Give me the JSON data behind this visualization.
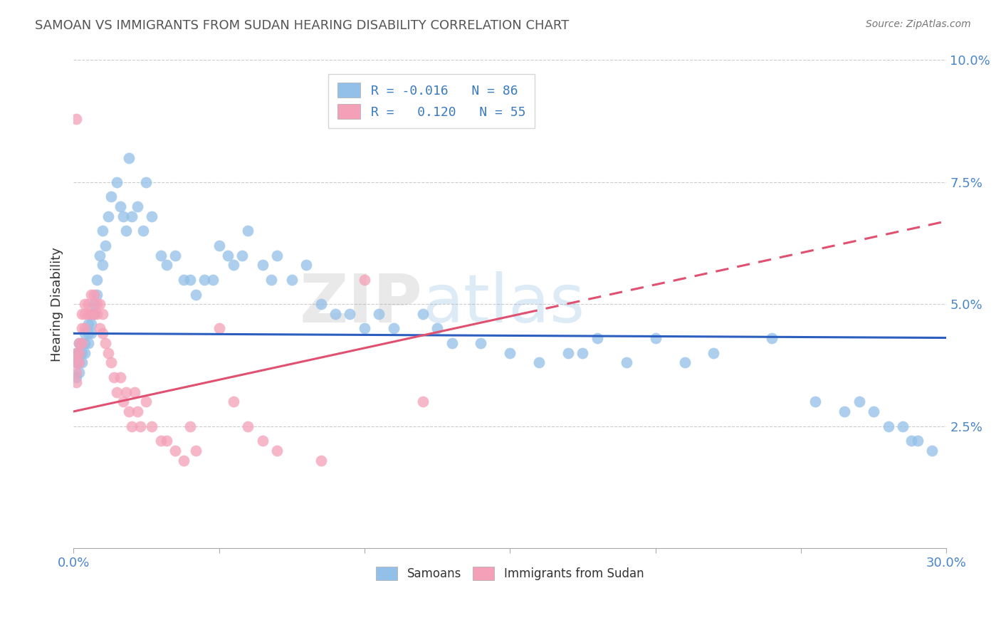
{
  "title": "SAMOAN VS IMMIGRANTS FROM SUDAN HEARING DISABILITY CORRELATION CHART",
  "source": "Source: ZipAtlas.com",
  "ylabel": "Hearing Disability",
  "xlim": [
    0,
    0.3
  ],
  "ylim": [
    0,
    0.1
  ],
  "xtick_positions": [
    0.0,
    0.05,
    0.1,
    0.15,
    0.2,
    0.25,
    0.3
  ],
  "xtick_labels_sparse": {
    "0.0": "0.0%",
    "0.30": "30.0%"
  },
  "ytick_positions": [
    0.0,
    0.025,
    0.05,
    0.075,
    0.1
  ],
  "ytick_labels": [
    "",
    "2.5%",
    "5.0%",
    "7.5%",
    "10.0%"
  ],
  "blue_color": "#92C0E8",
  "pink_color": "#F4A0B8",
  "trend_blue": "#2B5EBF",
  "trend_pink": "#E05070",
  "blue_R": -0.016,
  "blue_N": 86,
  "pink_R": 0.12,
  "pink_N": 55,
  "samoans_label": "Samoans",
  "immigrants_label": "Immigrants from Sudan",
  "watermark_zip": "ZIP",
  "watermark_atlas": "atlas",
  "blue_x": [
    0.001,
    0.001,
    0.001,
    0.002,
    0.002,
    0.002,
    0.002,
    0.003,
    0.003,
    0.003,
    0.004,
    0.004,
    0.004,
    0.005,
    0.005,
    0.005,
    0.006,
    0.006,
    0.006,
    0.007,
    0.007,
    0.008,
    0.008,
    0.009,
    0.01,
    0.01,
    0.011,
    0.012,
    0.013,
    0.015,
    0.016,
    0.017,
    0.018,
    0.019,
    0.02,
    0.022,
    0.024,
    0.025,
    0.027,
    0.03,
    0.032,
    0.035,
    0.038,
    0.04,
    0.042,
    0.045,
    0.048,
    0.05,
    0.053,
    0.055,
    0.058,
    0.06,
    0.065,
    0.068,
    0.07,
    0.075,
    0.08,
    0.085,
    0.09,
    0.095,
    0.1,
    0.105,
    0.11,
    0.12,
    0.125,
    0.13,
    0.14,
    0.15,
    0.16,
    0.17,
    0.175,
    0.18,
    0.19,
    0.2,
    0.21,
    0.22,
    0.24,
    0.255,
    0.265,
    0.27,
    0.275,
    0.28,
    0.285,
    0.288,
    0.29,
    0.295
  ],
  "blue_y": [
    0.04,
    0.038,
    0.035,
    0.042,
    0.04,
    0.038,
    0.036,
    0.042,
    0.04,
    0.038,
    0.044,
    0.042,
    0.04,
    0.046,
    0.044,
    0.042,
    0.048,
    0.046,
    0.044,
    0.05,
    0.048,
    0.055,
    0.052,
    0.06,
    0.065,
    0.058,
    0.062,
    0.068,
    0.072,
    0.075,
    0.07,
    0.068,
    0.065,
    0.08,
    0.068,
    0.07,
    0.065,
    0.075,
    0.068,
    0.06,
    0.058,
    0.06,
    0.055,
    0.055,
    0.052,
    0.055,
    0.055,
    0.062,
    0.06,
    0.058,
    0.06,
    0.065,
    0.058,
    0.055,
    0.06,
    0.055,
    0.058,
    0.05,
    0.048,
    0.048,
    0.045,
    0.048,
    0.045,
    0.048,
    0.045,
    0.042,
    0.042,
    0.04,
    0.038,
    0.04,
    0.04,
    0.043,
    0.038,
    0.043,
    0.038,
    0.04,
    0.043,
    0.03,
    0.028,
    0.03,
    0.028,
    0.025,
    0.025,
    0.022,
    0.022,
    0.02
  ],
  "pink_x": [
    0.001,
    0.001,
    0.001,
    0.001,
    0.002,
    0.002,
    0.002,
    0.003,
    0.003,
    0.003,
    0.004,
    0.004,
    0.004,
    0.005,
    0.005,
    0.006,
    0.006,
    0.007,
    0.007,
    0.008,
    0.008,
    0.009,
    0.009,
    0.01,
    0.01,
    0.011,
    0.012,
    0.013,
    0.014,
    0.015,
    0.016,
    0.017,
    0.018,
    0.019,
    0.02,
    0.021,
    0.022,
    0.023,
    0.025,
    0.027,
    0.03,
    0.032,
    0.035,
    0.038,
    0.04,
    0.042,
    0.05,
    0.055,
    0.06,
    0.065,
    0.07,
    0.085,
    0.1,
    0.12,
    0.001
  ],
  "pink_y": [
    0.04,
    0.038,
    0.036,
    0.034,
    0.042,
    0.04,
    0.038,
    0.048,
    0.045,
    0.042,
    0.05,
    0.048,
    0.045,
    0.05,
    0.048,
    0.052,
    0.048,
    0.052,
    0.048,
    0.05,
    0.048,
    0.05,
    0.045,
    0.048,
    0.044,
    0.042,
    0.04,
    0.038,
    0.035,
    0.032,
    0.035,
    0.03,
    0.032,
    0.028,
    0.025,
    0.032,
    0.028,
    0.025,
    0.03,
    0.025,
    0.022,
    0.022,
    0.02,
    0.018,
    0.025,
    0.02,
    0.045,
    0.03,
    0.025,
    0.022,
    0.02,
    0.018,
    0.055,
    0.03,
    0.088
  ]
}
